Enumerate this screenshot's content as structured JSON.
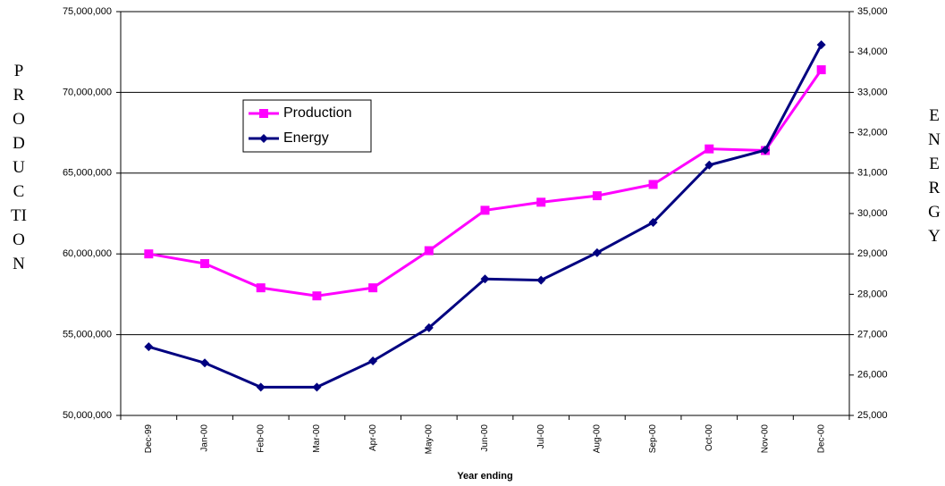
{
  "chart_data": {
    "type": "line",
    "x_label": "Year ending",
    "y_label": "PRODUCTION",
    "y2_label": "ENERGY",
    "categories": [
      "Dec-99",
      "Jan-00",
      "Feb-00",
      "Mar-00",
      "Apr-00",
      "May-00",
      "Jun-00",
      "Jul-00",
      "Aug-00",
      "Sep-00",
      "Oct-00",
      "Nov-00",
      "Dec-00"
    ],
    "series": [
      {
        "name": "Production",
        "color": "#ff00ff",
        "marker": "square",
        "values": [
          60000000,
          59400000,
          57900000,
          57400000,
          57900000,
          60200000,
          62700000,
          63200000,
          63600000,
          64300000,
          66500000,
          66400000,
          71400000
        ]
      },
      {
        "name": "Energy",
        "color": "#000080",
        "marker": "diamond",
        "axis": "y2",
        "values": [
          26700,
          26300,
          25700,
          25700,
          26350,
          27170,
          28380,
          28350,
          29030,
          29780,
          31200,
          31570,
          34180
        ]
      }
    ],
    "ylim": [
      50000000,
      75000000
    ],
    "yticks": [
      {
        "value": 50000000,
        "label": "50,000,000"
      },
      {
        "value": 55000000,
        "label": "55,000,000"
      },
      {
        "value": 60000000,
        "label": "60,000,000"
      },
      {
        "value": 65000000,
        "label": "65,000,000"
      },
      {
        "value": 70000000,
        "label": "70,000,000"
      },
      {
        "value": 75000000,
        "label": "75,000,000"
      }
    ],
    "y2lim": [
      25000,
      35000
    ],
    "y2ticks": [
      {
        "value": 25000,
        "label": "25,000"
      },
      {
        "value": 26000,
        "label": "26,000"
      },
      {
        "value": 27000,
        "label": "27,000"
      },
      {
        "value": 28000,
        "label": "28,000"
      },
      {
        "value": 29000,
        "label": "29,000"
      },
      {
        "value": 30000,
        "label": "30,000"
      },
      {
        "value": 31000,
        "label": "31,000"
      },
      {
        "value": 32000,
        "label": "32,000"
      },
      {
        "value": 33000,
        "label": "33,000"
      },
      {
        "value": 34000,
        "label": "34,000"
      },
      {
        "value": 35000,
        "label": "35,000"
      }
    ],
    "grid": true,
    "legend": "upper left"
  }
}
